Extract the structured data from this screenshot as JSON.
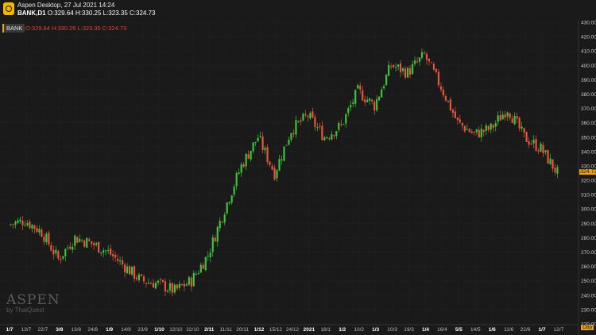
{
  "header": {
    "title": "Aspen Desktop, 27 Jul 2021 14:24",
    "symbol": "BANK,D1",
    "ohlc": "O:329.64 H:330.25 L:323.35 C:324.73"
  },
  "badge": {
    "label": "BANK",
    "values": "O:329.64 H:330.25 L:323.35 C:324.73"
  },
  "watermark": {
    "brand": "ASPEN",
    "sub": "by ThaiQuest"
  },
  "timeframe_label": "Day",
  "colors": {
    "up": "#3cc23c",
    "down": "#e8553a",
    "bg": "#1a1a1a",
    "grid": "#2b2b2b",
    "accent": "#f0a500"
  },
  "chart_data": {
    "type": "candlestick",
    "ylim": [
      220,
      430
    ],
    "y_ticks": [
      220,
      230,
      240,
      250,
      260,
      270,
      280,
      290,
      300,
      310,
      320,
      330,
      340,
      350,
      360,
      370,
      380,
      390,
      400,
      410,
      420,
      430
    ],
    "last_close": 324.73,
    "x_ticks": [
      "1/7",
      "13/7",
      "22/7",
      "3/8",
      "13/8",
      "24/8",
      "1/9",
      "14/9",
      "23/9",
      "1/10",
      "12/10",
      "22/10",
      "2/11",
      "11/11",
      "20/11",
      "1/12",
      "15/12",
      "24/12",
      "2021",
      "18/1",
      "1/2",
      "10/2",
      "1/3",
      "10/3",
      "19/3",
      "1/4",
      "16/4",
      "5/5",
      "14/5",
      "1/6",
      "11/6",
      "22/6",
      "1/7",
      "12/7"
    ],
    "bold_ticks": [
      "1/7",
      "3/8",
      "1/9",
      "1/10",
      "2/11",
      "1/12",
      "2021",
      "1/2",
      "1/3",
      "1/4",
      "5/5",
      "1/6",
      "1/7"
    ],
    "approx_close_path": [
      {
        "date": "1/7",
        "close": 289
      },
      {
        "date": "13/7",
        "close": 292
      },
      {
        "date": "22/7",
        "close": 284
      },
      {
        "date": "3/8",
        "close": 265
      },
      {
        "date": "13/8",
        "close": 280
      },
      {
        "date": "24/8",
        "close": 276
      },
      {
        "date": "1/9",
        "close": 270
      },
      {
        "date": "14/9",
        "close": 260
      },
      {
        "date": "23/9",
        "close": 250
      },
      {
        "date": "1/10",
        "close": 248
      },
      {
        "date": "12/10",
        "close": 243
      },
      {
        "date": "22/10",
        "close": 250
      },
      {
        "date": "2/11",
        "close": 268
      },
      {
        "date": "11/11",
        "close": 300
      },
      {
        "date": "20/11",
        "close": 330
      },
      {
        "date": "1/12",
        "close": 350
      },
      {
        "date": "15/12",
        "close": 325
      },
      {
        "date": "24/12",
        "close": 355
      },
      {
        "date": "2021",
        "close": 365
      },
      {
        "date": "18/1",
        "close": 350
      },
      {
        "date": "1/2",
        "close": 358
      },
      {
        "date": "10/2",
        "close": 382
      },
      {
        "date": "1/3",
        "close": 372
      },
      {
        "date": "10/3",
        "close": 400
      },
      {
        "date": "19/3",
        "close": 395
      },
      {
        "date": "1/4",
        "close": 407
      },
      {
        "date": "16/4",
        "close": 385
      },
      {
        "date": "5/5",
        "close": 360
      },
      {
        "date": "14/5",
        "close": 352
      },
      {
        "date": "1/6",
        "close": 356
      },
      {
        "date": "11/6",
        "close": 370
      },
      {
        "date": "22/6",
        "close": 350
      },
      {
        "date": "1/7",
        "close": 342
      },
      {
        "date": "12/7",
        "close": 325
      }
    ]
  }
}
